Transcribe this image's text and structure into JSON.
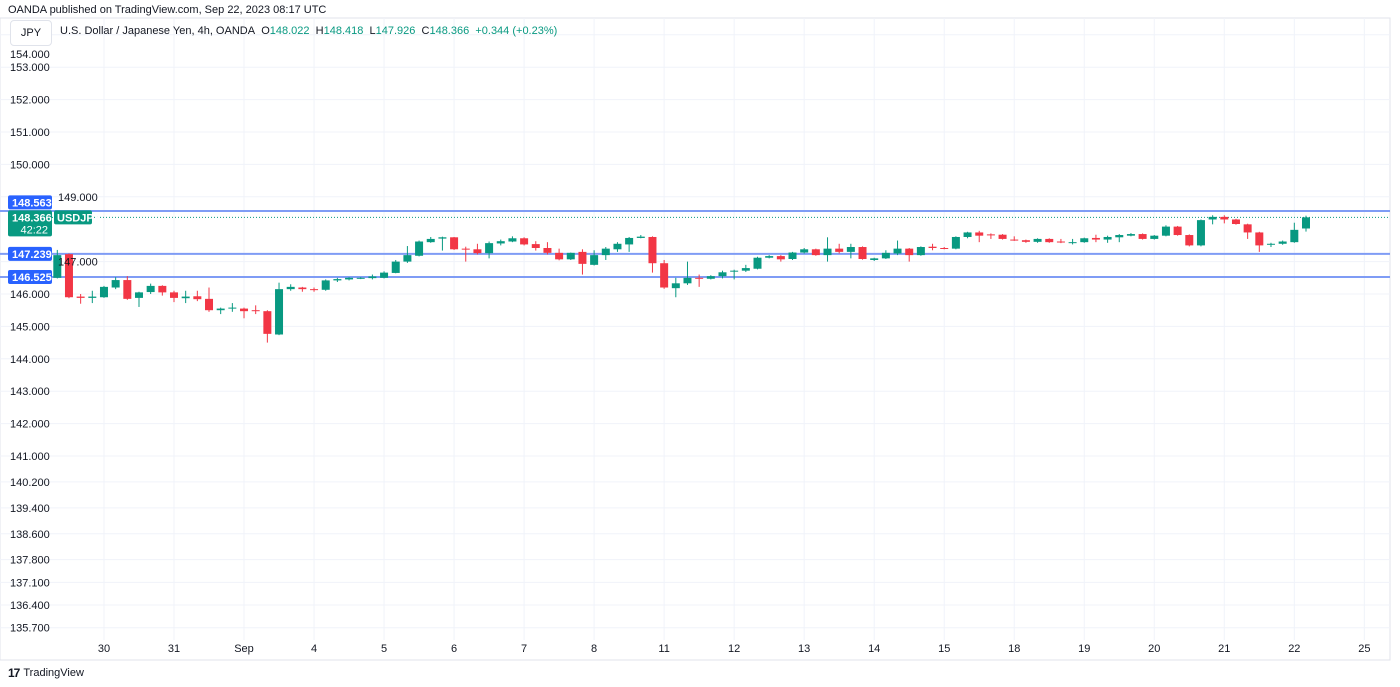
{
  "header": {
    "published": "OANDA published on TradingView.com, Sep 22, 2023 08:17 UTC"
  },
  "symbol_box": "JPY",
  "legend": {
    "title": "U.S. Dollar / Japanese Yen, 4h, OANDA",
    "o_label": "O",
    "o": "148.022",
    "h_label": "H",
    "h": "148.418",
    "l_label": "L",
    "l": "147.926",
    "c_label": "C",
    "c": "148.366",
    "change": "+0.344 (+0.23%)"
  },
  "footer": {
    "brand": "TradingView",
    "logo_text": "17"
  },
  "colors": {
    "up": "#089981",
    "down": "#f23645",
    "level_line": "#7f9cf5",
    "level_label": "#2962ff",
    "grid": "#f0f3fa"
  },
  "chart_data": {
    "type": "candlestick",
    "title": "U.S. Dollar / Japanese Yen, 4h, OANDA",
    "ylim": [
      135.7,
      154.0
    ],
    "y_ticks": [
      "154.000",
      "153.000",
      "152.000",
      "151.000",
      "150.000",
      "149.000",
      "147.000",
      "146.000",
      "145.000",
      "144.000",
      "143.000",
      "142.000",
      "141.000",
      "140.200",
      "139.400",
      "138.600",
      "137.800",
      "137.100",
      "136.400",
      "135.700"
    ],
    "x_labels": [
      {
        "label": "30",
        "index": 4
      },
      {
        "label": "31",
        "index": 10
      },
      {
        "label": "Sep",
        "index": 16
      },
      {
        "label": "4",
        "index": 22
      },
      {
        "label": "5",
        "index": 28
      },
      {
        "label": "6",
        "index": 34
      },
      {
        "label": "7",
        "index": 40
      },
      {
        "label": "8",
        "index": 46
      },
      {
        "label": "11",
        "index": 52
      },
      {
        "label": "12",
        "index": 58
      },
      {
        "label": "13",
        "index": 64
      },
      {
        "label": "14",
        "index": 70
      },
      {
        "label": "15",
        "index": 76
      },
      {
        "label": "18",
        "index": 82
      },
      {
        "label": "19",
        "index": 88
      },
      {
        "label": "20",
        "index": 94
      },
      {
        "label": "21",
        "index": 100
      },
      {
        "label": "22",
        "index": 106
      },
      {
        "label": "25",
        "index": 112
      }
    ],
    "levels": [
      {
        "price": 148.563,
        "label": "148.563"
      },
      {
        "price": 147.239,
        "label": "147.239"
      },
      {
        "price": 146.525,
        "label": "146.525"
      }
    ],
    "current": {
      "price": 148.366,
      "label": "148.366",
      "countdown": "42:22",
      "symbol": "USDJPY"
    },
    "ohlc": [
      [
        146.5,
        147.36,
        146.48,
        147.2
      ],
      [
        147.23,
        147.25,
        145.87,
        145.9
      ],
      [
        145.92,
        146.0,
        145.7,
        145.88
      ],
      [
        145.88,
        146.1,
        145.72,
        145.92
      ],
      [
        145.9,
        146.25,
        145.88,
        146.22
      ],
      [
        146.2,
        146.52,
        146.15,
        146.43
      ],
      [
        146.43,
        146.55,
        145.82,
        145.85
      ],
      [
        145.88,
        146.07,
        145.6,
        146.05
      ],
      [
        146.06,
        146.32,
        146.0,
        146.25
      ],
      [
        146.25,
        146.27,
        145.95,
        146.05
      ],
      [
        146.05,
        146.1,
        145.75,
        145.88
      ],
      [
        145.87,
        146.1,
        145.72,
        145.92
      ],
      [
        145.93,
        146.1,
        145.78,
        145.84
      ],
      [
        145.85,
        146.2,
        145.45,
        145.5
      ],
      [
        145.5,
        145.58,
        145.38,
        145.55
      ],
      [
        145.55,
        145.72,
        145.45,
        145.58
      ],
      [
        145.55,
        145.58,
        145.25,
        145.47
      ],
      [
        145.5,
        145.65,
        145.38,
        145.47
      ],
      [
        145.47,
        145.5,
        144.5,
        144.77
      ],
      [
        144.75,
        146.35,
        144.73,
        146.15
      ],
      [
        146.15,
        146.3,
        146.1,
        146.22
      ],
      [
        146.2,
        146.22,
        146.07,
        146.15
      ],
      [
        146.15,
        146.2,
        146.07,
        146.13
      ],
      [
        146.13,
        146.45,
        146.1,
        146.42
      ],
      [
        146.42,
        146.5,
        146.37,
        146.46
      ],
      [
        146.45,
        146.52,
        146.42,
        146.5
      ],
      [
        146.48,
        146.52,
        146.46,
        146.5
      ],
      [
        146.49,
        146.6,
        146.45,
        146.54
      ],
      [
        146.5,
        146.7,
        146.48,
        146.66
      ],
      [
        146.65,
        147.05,
        146.64,
        147.0
      ],
      [
        147.0,
        147.48,
        146.96,
        147.2
      ],
      [
        147.18,
        147.65,
        147.16,
        147.62
      ],
      [
        147.6,
        147.76,
        147.58,
        147.7
      ],
      [
        147.71,
        147.77,
        147.34,
        147.75
      ],
      [
        147.75,
        147.76,
        147.36,
        147.38
      ],
      [
        147.4,
        147.46,
        147.0,
        147.37
      ],
      [
        147.38,
        147.55,
        147.22,
        147.26
      ],
      [
        147.26,
        147.62,
        147.1,
        147.57
      ],
      [
        147.56,
        147.68,
        147.5,
        147.63
      ],
      [
        147.62,
        147.78,
        147.6,
        147.72
      ],
      [
        147.72,
        147.75,
        147.5,
        147.53
      ],
      [
        147.54,
        147.63,
        147.34,
        147.42
      ],
      [
        147.42,
        147.6,
        147.22,
        147.27
      ],
      [
        147.27,
        147.4,
        147.04,
        147.07
      ],
      [
        147.07,
        147.28,
        147.05,
        147.27
      ],
      [
        147.3,
        147.38,
        146.6,
        146.93
      ],
      [
        146.9,
        147.35,
        146.88,
        147.2
      ],
      [
        147.2,
        147.45,
        147.05,
        147.4
      ],
      [
        147.38,
        147.6,
        147.3,
        147.55
      ],
      [
        147.53,
        147.76,
        147.3,
        147.73
      ],
      [
        147.73,
        147.82,
        147.72,
        147.77
      ],
      [
        147.76,
        147.78,
        146.66,
        146.95
      ],
      [
        146.95,
        147.05,
        146.16,
        146.2
      ],
      [
        146.18,
        146.5,
        145.9,
        146.33
      ],
      [
        146.33,
        147.0,
        146.28,
        146.5
      ],
      [
        146.5,
        146.6,
        146.22,
        146.47
      ],
      [
        146.47,
        146.58,
        146.45,
        146.55
      ],
      [
        146.55,
        146.72,
        146.48,
        146.67
      ],
      [
        146.7,
        146.75,
        146.45,
        146.72
      ],
      [
        146.72,
        146.9,
        146.68,
        146.8
      ],
      [
        146.78,
        147.15,
        146.76,
        147.12
      ],
      [
        147.12,
        147.2,
        147.1,
        147.17
      ],
      [
        147.17,
        147.2,
        147.0,
        147.07
      ],
      [
        147.08,
        147.3,
        147.05,
        147.28
      ],
      [
        147.28,
        147.42,
        147.25,
        147.38
      ],
      [
        147.38,
        147.4,
        147.18,
        147.2
      ],
      [
        147.2,
        147.75,
        147.0,
        147.4
      ],
      [
        147.4,
        147.55,
        147.25,
        147.3
      ],
      [
        147.3,
        147.55,
        147.1,
        147.45
      ],
      [
        147.45,
        147.47,
        147.06,
        147.08
      ],
      [
        147.05,
        147.12,
        147.02,
        147.1
      ],
      [
        147.1,
        147.35,
        147.08,
        147.27
      ],
      [
        147.25,
        147.65,
        147.2,
        147.4
      ],
      [
        147.4,
        147.42,
        147.0,
        147.2
      ],
      [
        147.2,
        147.47,
        147.18,
        147.45
      ],
      [
        147.46,
        147.55,
        147.35,
        147.42
      ],
      [
        147.42,
        147.45,
        147.38,
        147.4
      ],
      [
        147.4,
        147.78,
        147.38,
        147.76
      ],
      [
        147.76,
        147.92,
        147.72,
        147.9
      ],
      [
        147.9,
        147.95,
        147.6,
        147.8
      ],
      [
        147.84,
        147.87,
        147.7,
        147.81
      ],
      [
        147.83,
        147.85,
        147.68,
        147.7
      ],
      [
        147.68,
        147.78,
        147.64,
        147.66
      ],
      [
        147.66,
        147.68,
        147.58,
        147.61
      ],
      [
        147.61,
        147.72,
        147.58,
        147.7
      ],
      [
        147.7,
        147.72,
        147.58,
        147.6
      ],
      [
        147.62,
        147.7,
        147.57,
        147.6
      ],
      [
        147.58,
        147.7,
        147.53,
        147.6
      ],
      [
        147.6,
        147.74,
        147.58,
        147.72
      ],
      [
        147.73,
        147.83,
        147.6,
        147.68
      ],
      [
        147.68,
        147.8,
        147.58,
        147.76
      ],
      [
        147.75,
        147.85,
        147.6,
        147.82
      ],
      [
        147.8,
        147.88,
        147.78,
        147.85
      ],
      [
        147.85,
        147.87,
        147.68,
        147.7
      ],
      [
        147.7,
        147.82,
        147.68,
        147.8
      ],
      [
        147.8,
        148.12,
        147.78,
        148.08
      ],
      [
        148.08,
        148.1,
        147.8,
        147.82
      ],
      [
        147.82,
        147.84,
        147.47,
        147.5
      ],
      [
        147.5,
        148.3,
        147.47,
        148.28
      ],
      [
        148.3,
        148.43,
        148.15,
        148.38
      ],
      [
        148.38,
        148.43,
        148.18,
        148.3
      ],
      [
        148.3,
        148.32,
        148.14,
        148.16
      ],
      [
        148.15,
        148.17,
        147.7,
        147.9
      ],
      [
        147.9,
        147.92,
        147.3,
        147.5
      ],
      [
        147.52,
        147.58,
        147.45,
        147.55
      ],
      [
        147.55,
        147.65,
        147.52,
        147.62
      ],
      [
        147.6,
        148.2,
        147.58,
        147.98
      ],
      [
        148.022,
        148.418,
        147.926,
        148.366
      ]
    ]
  }
}
